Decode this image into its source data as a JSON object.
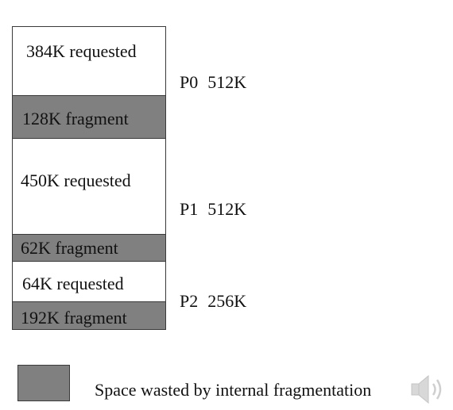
{
  "blocks": [
    {
      "label": "384K requested",
      "kind": "requested"
    },
    {
      "label": "128K fragment",
      "kind": "fragment"
    },
    {
      "label": "450K requested",
      "kind": "requested"
    },
    {
      "label": "62K fragment",
      "kind": "fragment"
    },
    {
      "label": "64K requested",
      "kind": "requested"
    },
    {
      "label": "192K fragment",
      "kind": "fragment"
    }
  ],
  "partitions": [
    {
      "name": "P0",
      "size": "512K"
    },
    {
      "name": "P1",
      "size": "512K"
    },
    {
      "name": "P2",
      "size": "256K"
    }
  ],
  "legend": {
    "text": "Space wasted by internal fragmentation",
    "swatch_color": "#808080"
  },
  "icons": {
    "speaker": "speaker-icon"
  },
  "colors": {
    "requested": "#ffffff",
    "fragment": "#808080"
  }
}
